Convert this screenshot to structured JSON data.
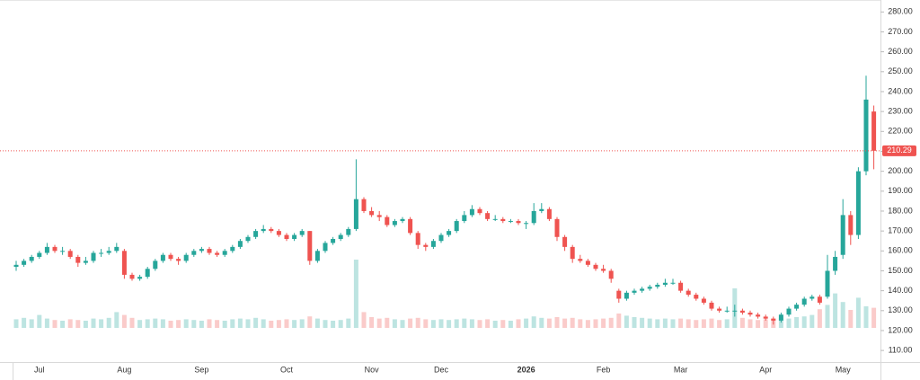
{
  "chart_data": {
    "type": "candlestick",
    "up_color": "#26a69a",
    "down_color": "#ef5350",
    "last_price": 210.29,
    "ylim": [
      106,
      286
    ],
    "yticks": [
      {
        "value": 110,
        "label": "110.00"
      },
      {
        "value": 120,
        "label": "120.00"
      },
      {
        "value": 130,
        "label": "130.00"
      },
      {
        "value": 140,
        "label": "140.00"
      },
      {
        "value": 150,
        "label": "150.00"
      },
      {
        "value": 160,
        "label": "160.00"
      },
      {
        "value": 170,
        "label": "170.00"
      },
      {
        "value": 180,
        "label": "180.00"
      },
      {
        "value": 190,
        "label": "190.00"
      },
      {
        "value": 200,
        "label": "200.00"
      },
      {
        "value": 210,
        "label": "210.00"
      },
      {
        "value": 220,
        "label": "220.00"
      },
      {
        "value": 230,
        "label": "230.00"
      },
      {
        "value": 240,
        "label": "240.00"
      },
      {
        "value": 250,
        "label": "250.00"
      },
      {
        "value": 260,
        "label": "260.00"
      },
      {
        "value": 270,
        "label": "270.00"
      },
      {
        "value": 280,
        "label": "280.00"
      }
    ],
    "volume_lim": [
      0,
      100
    ],
    "categories": [
      null,
      null,
      null,
      "Jul",
      null,
      null,
      null,
      null,
      null,
      null,
      null,
      null,
      null,
      null,
      "Aug",
      null,
      null,
      null,
      null,
      null,
      null,
      null,
      null,
      null,
      "Sep",
      null,
      null,
      null,
      null,
      null,
      null,
      null,
      null,
      null,
      null,
      "Oct",
      null,
      null,
      null,
      null,
      null,
      null,
      null,
      null,
      null,
      null,
      "Nov",
      null,
      null,
      null,
      null,
      null,
      null,
      null,
      null,
      "Dec",
      null,
      null,
      null,
      null,
      null,
      null,
      null,
      null,
      null,
      null,
      "2026",
      null,
      null,
      null,
      null,
      null,
      null,
      null,
      null,
      null,
      "Feb",
      null,
      null,
      null,
      null,
      null,
      null,
      null,
      null,
      null,
      "Mar",
      null,
      null,
      null,
      null,
      null,
      null,
      null,
      null,
      null,
      null,
      "Apr",
      null,
      null,
      null,
      null,
      null,
      null,
      null,
      null,
      null,
      "May",
      null,
      null,
      null,
      null
    ],
    "candles": [
      [
        152,
        155,
        150,
        153,
        12
      ],
      [
        153,
        156,
        152,
        155,
        14
      ],
      [
        155,
        158,
        154,
        157,
        12
      ],
      [
        157,
        160,
        156,
        159,
        18
      ],
      [
        159,
        164,
        158,
        162,
        13
      ],
      [
        162,
        163,
        159,
        160,
        11
      ],
      [
        160,
        162,
        158,
        160,
        10
      ],
      [
        160,
        161,
        156,
        157,
        12
      ],
      [
        157,
        158,
        152,
        154,
        11
      ],
      [
        154,
        157,
        153,
        155,
        10
      ],
      [
        155,
        160,
        154,
        159,
        13
      ],
      [
        159,
        161,
        157,
        159,
        12
      ],
      [
        159,
        162,
        158,
        160,
        14
      ],
      [
        160,
        164,
        159,
        162,
        22
      ],
      [
        160,
        161,
        146,
        148,
        18
      ],
      [
        148,
        149,
        145,
        146,
        14
      ],
      [
        146,
        148,
        145,
        147,
        11
      ],
      [
        147,
        152,
        146,
        151,
        12
      ],
      [
        151,
        156,
        150,
        155,
        13
      ],
      [
        155,
        159,
        154,
        158,
        12
      ],
      [
        158,
        159,
        155,
        156,
        10
      ],
      [
        156,
        157,
        153,
        155,
        11
      ],
      [
        155,
        159,
        154,
        158,
        12
      ],
      [
        158,
        161,
        157,
        160,
        11
      ],
      [
        160,
        162,
        159,
        161,
        10
      ],
      [
        161,
        162,
        158,
        159,
        12
      ],
      [
        159,
        160,
        157,
        158,
        11
      ],
      [
        158,
        161,
        157,
        160,
        10
      ],
      [
        160,
        163,
        159,
        162,
        12
      ],
      [
        162,
        166,
        161,
        165,
        13
      ],
      [
        165,
        168,
        164,
        167,
        12
      ],
      [
        167,
        171,
        166,
        170,
        14
      ],
      [
        170,
        173,
        169,
        171,
        12
      ],
      [
        171,
        172,
        169,
        170,
        10
      ],
      [
        170,
        171,
        167,
        168,
        11
      ],
      [
        168,
        169,
        165,
        166,
        12
      ],
      [
        166,
        169,
        165,
        168,
        11
      ],
      [
        168,
        171,
        167,
        170,
        12
      ],
      [
        170,
        170,
        153,
        155,
        16
      ],
      [
        155,
        161,
        154,
        160,
        13
      ],
      [
        160,
        165,
        159,
        164,
        11
      ],
      [
        164,
        167,
        163,
        166,
        10
      ],
      [
        166,
        169,
        165,
        168,
        11
      ],
      [
        168,
        172,
        167,
        171,
        13
      ],
      [
        171,
        206,
        170,
        186,
        95
      ],
      [
        186,
        187,
        179,
        180,
        22
      ],
      [
        180,
        182,
        177,
        178,
        15
      ],
      [
        178,
        180,
        175,
        177,
        13
      ],
      [
        177,
        178,
        172,
        173,
        14
      ],
      [
        173,
        176,
        172,
        175,
        12
      ],
      [
        175,
        177,
        174,
        176,
        11
      ],
      [
        176,
        177,
        168,
        169,
        13
      ],
      [
        169,
        170,
        161,
        163,
        14
      ],
      [
        163,
        164,
        160,
        162,
        12
      ],
      [
        162,
        166,
        161,
        165,
        11
      ],
      [
        165,
        169,
        164,
        168,
        12
      ],
      [
        168,
        171,
        167,
        170,
        11
      ],
      [
        170,
        176,
        169,
        175,
        12
      ],
      [
        175,
        180,
        174,
        178,
        13
      ],
      [
        178,
        183,
        177,
        181,
        12
      ],
      [
        181,
        182,
        178,
        179,
        11
      ],
      [
        179,
        180,
        175,
        176,
        12
      ],
      [
        176,
        178,
        175,
        176,
        10
      ],
      [
        176,
        177,
        174,
        175,
        11
      ],
      [
        175,
        176,
        174,
        175,
        10
      ],
      [
        175,
        176,
        173,
        174,
        12
      ],
      [
        174,
        175,
        171,
        174,
        13
      ],
      [
        174,
        184,
        173,
        180,
        16
      ],
      [
        180,
        184,
        179,
        181,
        14
      ],
      [
        181,
        182,
        175,
        176,
        13
      ],
      [
        176,
        177,
        165,
        167,
        15
      ],
      [
        167,
        168,
        160,
        162,
        13
      ],
      [
        162,
        163,
        154,
        156,
        14
      ],
      [
        156,
        158,
        154,
        155,
        12
      ],
      [
        155,
        156,
        152,
        153,
        11
      ],
      [
        153,
        154,
        150,
        151,
        12
      ],
      [
        151,
        153,
        149,
        150,
        13
      ],
      [
        150,
        151,
        144,
        146,
        14
      ],
      [
        140,
        141,
        134,
        136,
        20
      ],
      [
        136,
        140,
        135,
        139,
        17
      ],
      [
        139,
        141,
        138,
        140,
        15
      ],
      [
        140,
        142,
        139,
        141,
        14
      ],
      [
        141,
        143,
        140,
        142,
        13
      ],
      [
        142,
        144,
        141,
        143,
        12
      ],
      [
        143,
        146,
        142,
        144,
        13
      ],
      [
        144,
        146,
        143,
        144,
        12
      ],
      [
        144,
        145,
        139,
        140,
        13
      ],
      [
        140,
        141,
        137,
        138,
        12
      ],
      [
        138,
        139,
        135,
        136,
        11
      ],
      [
        136,
        137,
        133,
        134,
        12
      ],
      [
        134,
        135,
        130,
        131,
        13
      ],
      [
        131,
        132,
        129,
        130,
        11
      ],
      [
        130,
        132,
        129,
        130,
        12
      ],
      [
        130,
        133,
        127,
        130,
        55
      ],
      [
        130,
        131,
        128,
        129,
        14
      ],
      [
        129,
        130,
        127,
        128,
        12
      ],
      [
        128,
        129,
        126,
        127,
        11
      ],
      [
        127,
        128,
        125,
        126,
        12
      ],
      [
        126,
        127,
        123,
        125,
        13
      ],
      [
        125,
        129,
        124,
        128,
        14
      ],
      [
        128,
        132,
        127,
        131,
        13
      ],
      [
        131,
        134,
        130,
        133,
        15
      ],
      [
        133,
        137,
        132,
        136,
        16
      ],
      [
        136,
        138,
        135,
        137,
        18
      ],
      [
        137,
        138,
        133,
        134,
        26
      ],
      [
        137,
        158,
        136,
        150,
        32
      ],
      [
        150,
        160,
        148,
        157,
        48
      ],
      [
        158,
        186,
        156,
        178,
        36
      ],
      [
        178,
        180,
        163,
        168,
        25
      ],
      [
        168,
        202,
        166,
        200,
        42
      ],
      [
        200,
        248,
        198,
        236,
        30
      ],
      [
        230,
        233,
        201,
        210.29,
        28
      ]
    ]
  }
}
